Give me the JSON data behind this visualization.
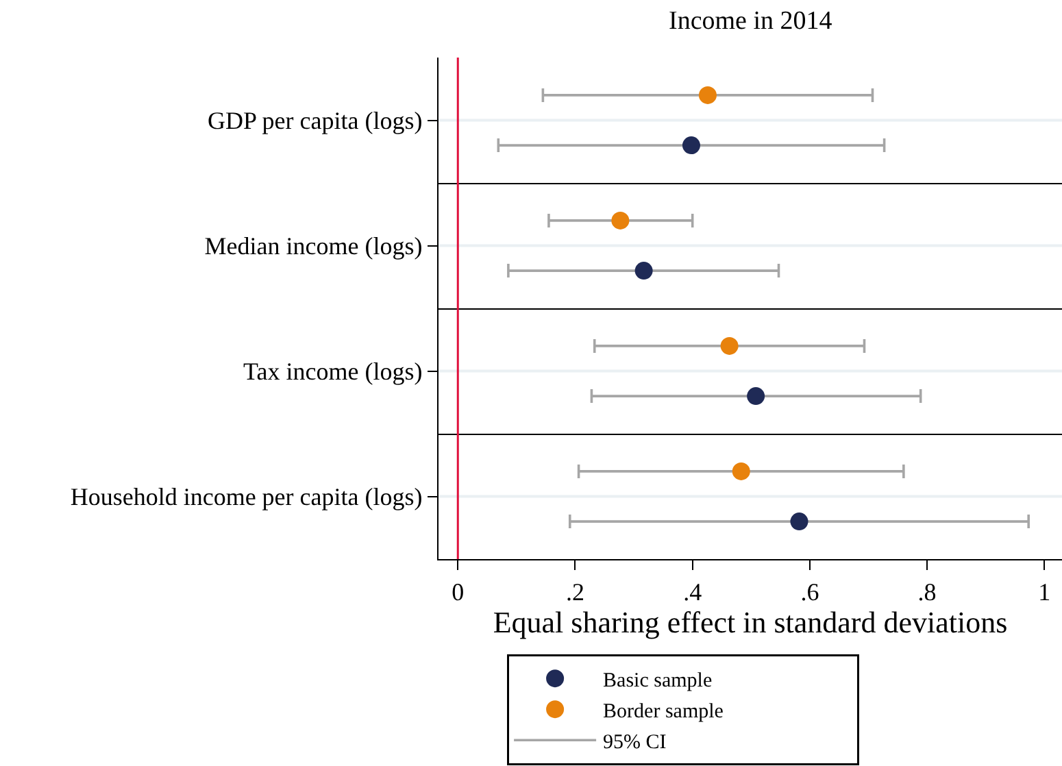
{
  "chart_data": [
    {
      "type": "scatter",
      "orientation": "horizontal",
      "title": "Income in 2014",
      "categories": [
        "GDP per capita (logs)"
      ],
      "series": [
        {
          "name": "Basic sample",
          "color": "#1f2a56",
          "values": [
            0.398
          ],
          "errors": [
            [
              0.069,
              0.727
            ]
          ]
        },
        {
          "name": "Border sample",
          "color": "#e8820c",
          "values": [
            0.426
          ],
          "errors": [
            [
              0.145,
              0.707
            ]
          ]
        }
      ],
      "xlim": [
        -0.033,
        1.03
      ],
      "ref_lines": [
        {
          "axis": "x",
          "value": 0,
          "color": "#e0103c"
        },
        {
          "axis": "y",
          "value": "GDP per capita (logs)",
          "color": "#eaf0f3"
        }
      ],
      "marker": "circle",
      "tick_labels": "y",
      "legend": "bottom",
      "annotations": [
        "95% CI"
      ]
    },
    {
      "type": "scatter",
      "orientation": "horizontal",
      "categories": [
        "Median income (logs)"
      ],
      "series": [
        {
          "color": "#1f2a56",
          "values": [
            0.317
          ],
          "errors": [
            [
              0.086,
              0.547
            ]
          ]
        },
        {
          "color": "#e8820c",
          "values": [
            0.277
          ],
          "errors": [
            [
              0.155,
              0.4
            ]
          ]
        }
      ],
      "xlim": [
        -0.033,
        1.03
      ],
      "ref_lines": [
        {
          "axis": "x",
          "value": 0,
          "color": "#e0103c"
        },
        {
          "axis": "y",
          "value": "Median income (logs)",
          "color": "#eaf0f3"
        }
      ],
      "marker": "circle",
      "tick_labels": "y"
    },
    {
      "type": "scatter",
      "orientation": "horizontal",
      "categories": [
        "Tax income (logs)"
      ],
      "series": [
        {
          "color": "#1f2a56",
          "values": [
            0.508
          ],
          "errors": [
            [
              0.228,
              0.789
            ]
          ]
        },
        {
          "color": "#e8820c",
          "values": [
            0.463
          ],
          "errors": [
            [
              0.233,
              0.693
            ]
          ]
        }
      ],
      "xlim": [
        -0.033,
        1.03
      ],
      "ref_lines": [
        {
          "axis": "x",
          "value": 0,
          "color": "#e0103c"
        },
        {
          "axis": "y",
          "value": "Tax income (logs)",
          "color": "#eaf0f3"
        }
      ],
      "marker": "circle",
      "tick_labels": "y"
    },
    {
      "type": "scatter",
      "orientation": "horizontal",
      "categories": [
        "Household income per capita (logs)"
      ],
      "xlabel": "Equal sharing effect in standard deviations",
      "series": [
        {
          "color": "#1f2a56",
          "values": [
            0.582
          ],
          "errors": [
            [
              0.191,
              0.973
            ]
          ]
        },
        {
          "color": "#e8820c",
          "values": [
            0.483
          ],
          "errors": [
            [
              0.206,
              0.76
            ]
          ]
        }
      ],
      "xlim": [
        -0.033,
        1.03
      ],
      "xticks": [
        0,
        {
          "value": 0.2,
          "label": ".2"
        },
        {
          "value": 0.4,
          "label": ".4"
        },
        {
          "value": 0.6,
          "label": ".6"
        },
        {
          "value": 0.8,
          "label": ".8"
        },
        1
      ],
      "ref_lines": [
        {
          "axis": "x",
          "value": 0,
          "color": "#e0103c"
        },
        {
          "axis": "y",
          "value": "Household income per capita (logs)",
          "color": "#eaf0f3"
        }
      ],
      "marker": "circle"
    }
  ]
}
